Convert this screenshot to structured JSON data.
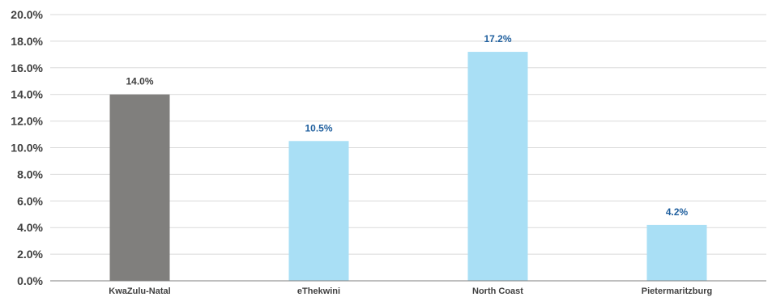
{
  "chart_data": {
    "type": "bar",
    "categories": [
      "KwaZulu-Natal",
      "eThekwini",
      "North Coast",
      "Pietermaritzburg"
    ],
    "values": [
      14.0,
      10.5,
      17.2,
      4.2
    ],
    "value_labels": [
      "14.0%",
      "10.5%",
      "17.2%",
      "4.2%"
    ],
    "yticks": [
      "0.0%",
      "2.0%",
      "4.0%",
      "6.0%",
      "8.0%",
      "10.0%",
      "12.0%",
      "14.0%",
      "16.0%",
      "18.0%",
      "20.0%"
    ],
    "ylim": [
      0,
      20
    ],
    "grid": true,
    "bar_colors": [
      "#807f7d",
      "#a9dff5",
      "#a9dff5",
      "#a9dff5"
    ],
    "label_colors": [
      "#404040",
      "#1f5f9e",
      "#1f5f9e",
      "#1f5f9e"
    ]
  }
}
